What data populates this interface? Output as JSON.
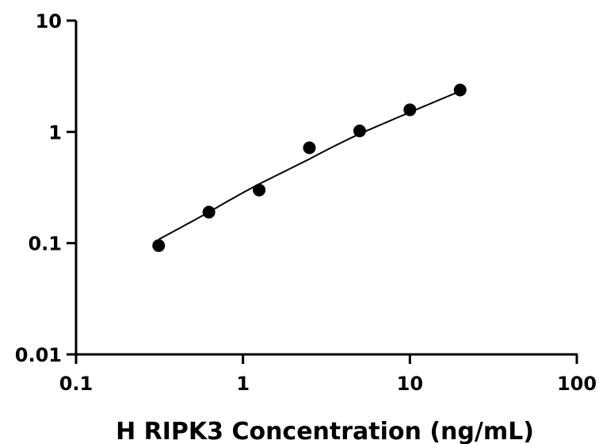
{
  "chart_data": {
    "type": "scatter",
    "title": "",
    "xlabel": "H RIPK3 Concentration (ng/mL)",
    "ylabel": "",
    "x_scale": "log",
    "y_scale": "log",
    "xlim": [
      0.1,
      100
    ],
    "ylim": [
      0.01,
      10
    ],
    "x_ticks": [
      0.1,
      1,
      10,
      100
    ],
    "x_tick_labels": [
      "0.1",
      "1",
      "10",
      "100"
    ],
    "y_ticks": [
      0.01,
      0.1,
      1,
      10
    ],
    "y_tick_labels": [
      "0.01",
      "0.1",
      "1",
      "10"
    ],
    "grid": false,
    "legend": "none",
    "series": [
      {
        "type": "scatter",
        "x": [
          0.3125,
          0.625,
          1.25,
          2.5,
          5,
          10,
          20
        ],
        "y": [
          0.095,
          0.19,
          0.3,
          0.72,
          1.02,
          1.58,
          2.38
        ]
      },
      {
        "type": "line",
        "x": [
          0.3125,
          0.625,
          1.25,
          2.5,
          5,
          10,
          20
        ],
        "y": [
          0.108,
          0.19,
          0.34,
          0.57,
          0.96,
          1.5,
          2.32
        ]
      }
    ]
  }
}
